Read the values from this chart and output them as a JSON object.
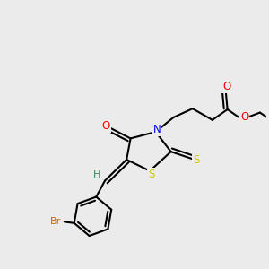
{
  "background_color": "#ebebeb",
  "atom_colors": {
    "C": "#000000",
    "N": "#0000ff",
    "O": "#ff0000",
    "S": "#cccc00",
    "Br": "#cc6600",
    "H": "#2e8b57"
  },
  "bond_color": "#000000",
  "bond_width": 1.5,
  "font_size_atom": 8.5
}
